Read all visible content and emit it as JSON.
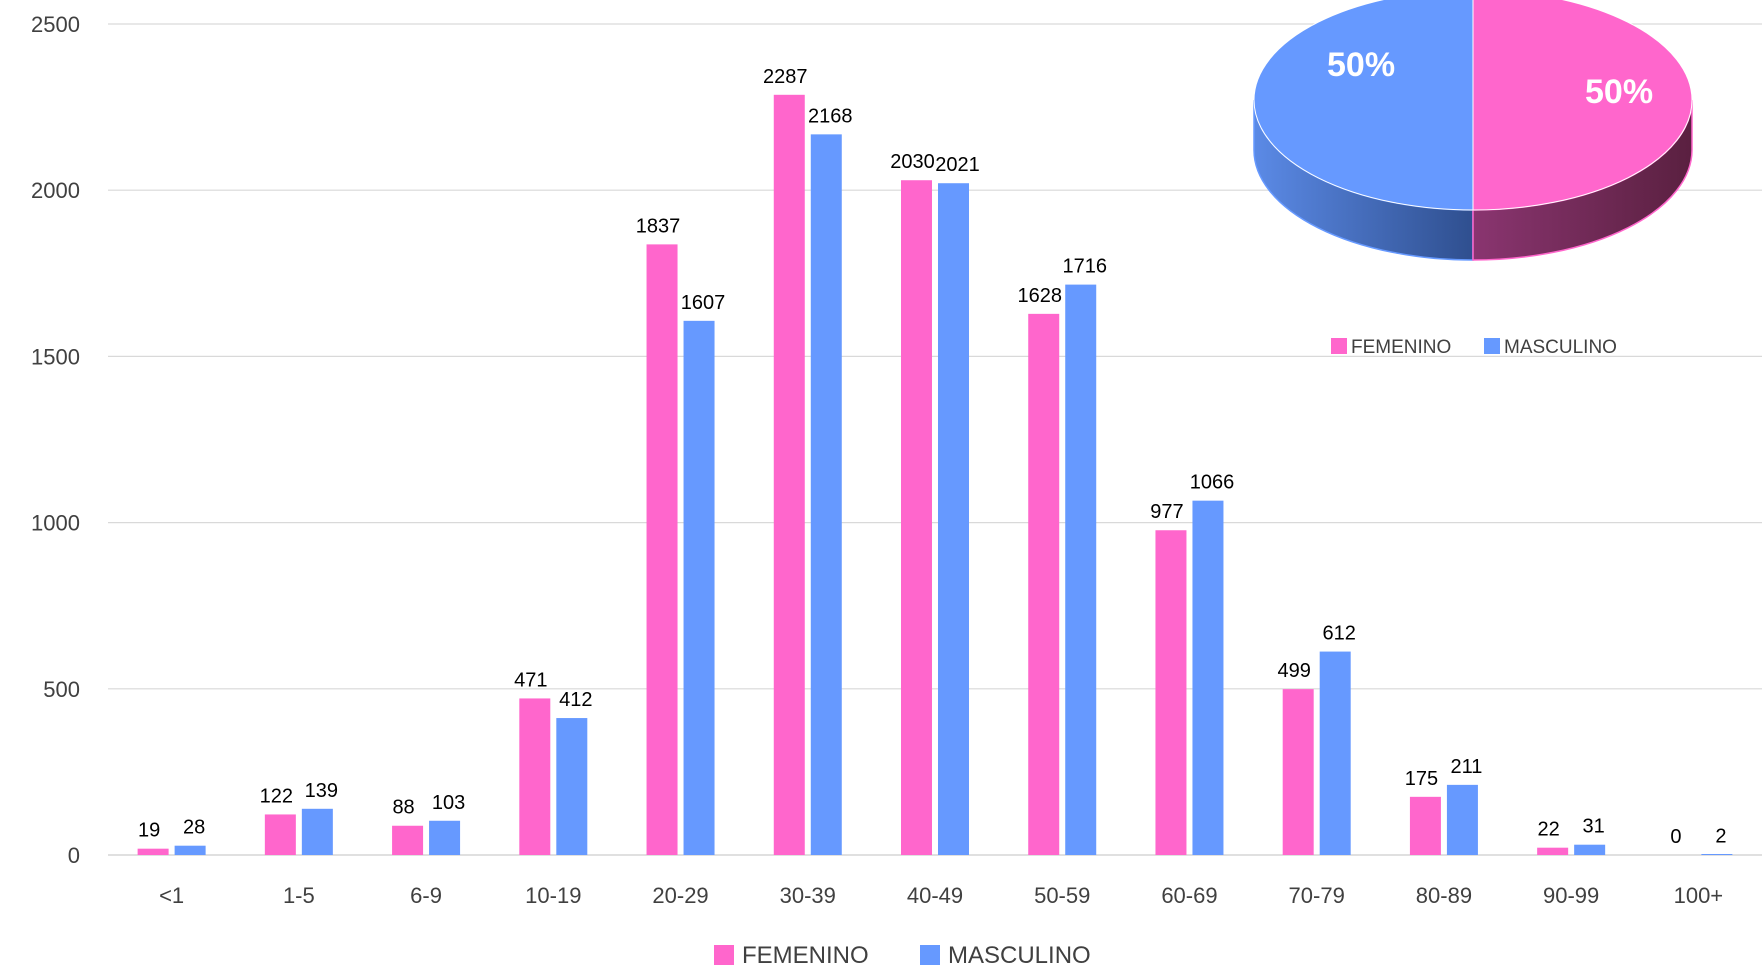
{
  "chart_data": [
    {
      "type": "bar",
      "categories": [
        "<1",
        "1-5",
        "6-9",
        "10-19",
        "20-29",
        "30-39",
        "40-49",
        "50-59",
        "60-69",
        "70-79",
        "80-89",
        "90-99",
        "100+"
      ],
      "series": [
        {
          "name": "FEMENINO",
          "color": "#FF66CC",
          "values": [
            19,
            122,
            88,
            471,
            1837,
            2287,
            2030,
            1628,
            977,
            499,
            175,
            22,
            0
          ]
        },
        {
          "name": "MASCULINO",
          "color": "#6699FF",
          "values": [
            28,
            139,
            103,
            412,
            1607,
            2168,
            2021,
            1716,
            1066,
            612,
            211,
            31,
            2
          ]
        }
      ],
      "yticks": [
        0,
        500,
        1000,
        1500,
        2000,
        2500
      ],
      "ylim": [
        0,
        2500
      ],
      "grid": true,
      "legend": "bottom"
    },
    {
      "type": "pie",
      "slices": [
        {
          "name": "FEMENINO",
          "value": 50,
          "label": "50%",
          "color": "#FF66CC"
        },
        {
          "name": "MASCULINO",
          "value": 50,
          "label": "50%",
          "color": "#6699FF"
        }
      ],
      "legend": "bottom"
    }
  ]
}
